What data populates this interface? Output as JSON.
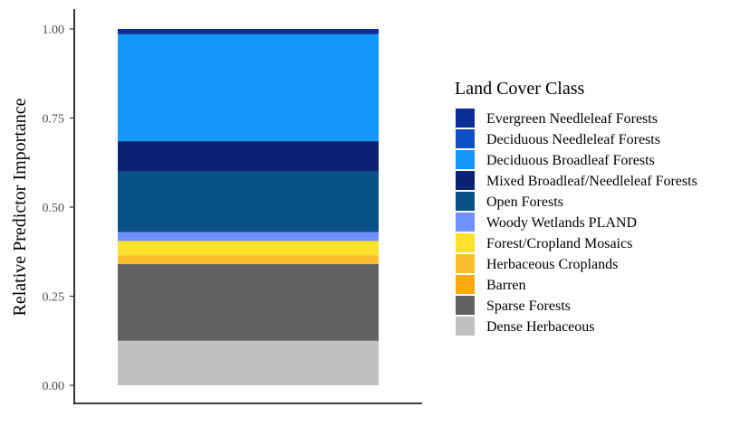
{
  "chart_data": {
    "type": "bar",
    "stacked": true,
    "categories": [
      ""
    ],
    "xlabel": "",
    "ylabel": "Relative Predictor Importance",
    "ylim": [
      0,
      1
    ],
    "yticks": [
      0,
      0.25,
      0.5,
      0.75,
      1
    ],
    "ytick_labels": [
      "0.00",
      "0.25",
      "0.50",
      "0.75",
      "1.00"
    ],
    "grid": false,
    "legend": {
      "title": "Land Cover Class",
      "position": "right"
    },
    "series": [
      {
        "name": "Evergreen Needleleaf Forests",
        "color": "#0a2f96",
        "values": [
          0.015
        ]
      },
      {
        "name": "Deciduous Needleleaf Forests",
        "color": "#0b50c4",
        "values": [
          0.0
        ]
      },
      {
        "name": "Deciduous Broadleaf Forests",
        "color": "#1398f8",
        "values": [
          0.3
        ]
      },
      {
        "name": "Mixed Broadleaf/Needleleaf Forests",
        "color": "#0a2273",
        "values": [
          0.085
        ]
      },
      {
        "name": "Open Forests",
        "color": "#075188",
        "values": [
          0.17
        ]
      },
      {
        "name": "Woody Wetlands PLAND",
        "color": "#6e91fa",
        "values": [
          0.025
        ]
      },
      {
        "name": "Forest/Cropland Mosaics",
        "color": "#fde12a",
        "values": [
          0.04
        ]
      },
      {
        "name": "Herbaceous Croplands",
        "color": "#fbbf2e",
        "values": [
          0.025
        ]
      },
      {
        "name": "Barren",
        "color": "#fca80f",
        "values": [
          0.0
        ]
      },
      {
        "name": "Sparse Forests",
        "color": "#616161",
        "values": [
          0.215
        ]
      },
      {
        "name": "Dense Herbaceous",
        "color": "#c1c1c1",
        "values": [
          0.125
        ]
      }
    ]
  }
}
